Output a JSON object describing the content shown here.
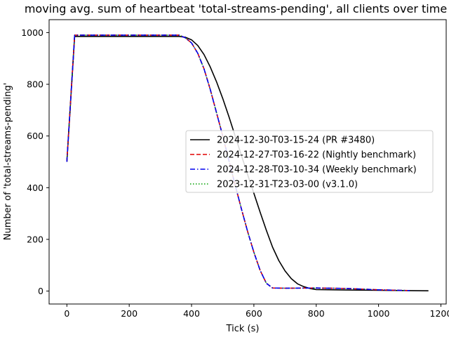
{
  "chart_data": {
    "type": "line",
    "title": "moving avg. sum of heartbeat 'total-streams-pending', all clients over time",
    "xlabel": "Tick (s)",
    "ylabel": "Number of 'total-streams-pending'",
    "xlim": [
      -57,
      1217
    ],
    "ylim": [
      -50,
      1050
    ],
    "xticks": [
      0,
      200,
      400,
      600,
      800,
      1000,
      1200
    ],
    "yticks": [
      0,
      200,
      400,
      600,
      800,
      1000
    ],
    "grid": false,
    "legend_position": "center-right",
    "series": [
      {
        "name": "2024-12-30-T03-15-24 (PR #3480)",
        "color": "#000000",
        "dash": "solid",
        "x": [
          0,
          25,
          100,
          200,
          300,
          360,
          380,
          400,
          420,
          440,
          460,
          480,
          500,
          520,
          540,
          560,
          580,
          600,
          620,
          640,
          660,
          680,
          700,
          720,
          740,
          760,
          780,
          800,
          900,
          1000,
          1100,
          1160
        ],
        "y": [
          500,
          985,
          985,
          985,
          985,
          985,
          982,
          972,
          950,
          915,
          867,
          810,
          745,
          675,
          600,
          525,
          450,
          378,
          305,
          235,
          170,
          118,
          78,
          48,
          28,
          17,
          10,
          6,
          4,
          3,
          2,
          1
        ]
      },
      {
        "name": "2024-12-27-T03-16-22 (Nightly benchmark)",
        "color": "#e00000",
        "dash": "dashed",
        "x": [
          0,
          25,
          100,
          200,
          300,
          360,
          380,
          400,
          420,
          440,
          460,
          480,
          500,
          520,
          540,
          560,
          580,
          600,
          620,
          640,
          660,
          700,
          800,
          900,
          1000,
          1100
        ],
        "y": [
          500,
          990,
          990,
          990,
          990,
          990,
          980,
          960,
          920,
          860,
          780,
          690,
          600,
          505,
          410,
          318,
          230,
          150,
          80,
          30,
          12,
          11,
          12,
          10,
          5,
          2
        ]
      },
      {
        "name": "2024-12-28-T03-10-34 (Weekly benchmark)",
        "color": "#0000ee",
        "dash": "dashdot",
        "x": [
          0,
          25,
          100,
          200,
          300,
          360,
          380,
          400,
          420,
          440,
          460,
          480,
          500,
          520,
          540,
          560,
          580,
          600,
          620,
          640,
          660,
          700,
          800,
          900,
          1000,
          1100
        ],
        "y": [
          500,
          990,
          990,
          990,
          990,
          990,
          980,
          960,
          920,
          860,
          780,
          690,
          600,
          505,
          410,
          318,
          230,
          150,
          80,
          30,
          12,
          11,
          12,
          10,
          5,
          2
        ]
      },
      {
        "name": "2023-12-31-T23-03-00 (v3.1.0)",
        "color": "#00a000",
        "dash": "dotted",
        "x": [
          0,
          25,
          100,
          200,
          300,
          360,
          380,
          400,
          420,
          440,
          460,
          480,
          500,
          520,
          540,
          560,
          580,
          600,
          620,
          640,
          660,
          700,
          800,
          900,
          1000,
          1100
        ],
        "y": [
          500,
          990,
          990,
          990,
          990,
          990,
          980,
          960,
          920,
          860,
          780,
          690,
          600,
          505,
          410,
          318,
          230,
          150,
          80,
          30,
          12,
          11,
          12,
          10,
          5,
          2
        ]
      }
    ]
  }
}
